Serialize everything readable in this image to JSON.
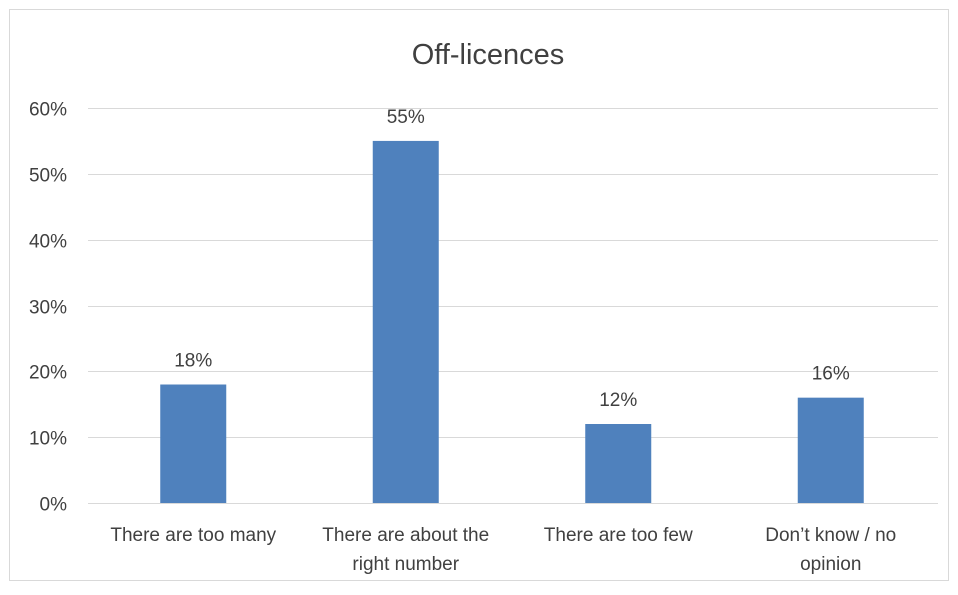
{
  "chart_data": {
    "type": "bar",
    "title": "Off-licences",
    "categories": [
      [
        "There are too many"
      ],
      [
        "There are about the",
        "right number"
      ],
      [
        "There are too few"
      ],
      [
        "Don’t know / no",
        "opinion"
      ]
    ],
    "values": [
      18,
      55,
      12,
      16
    ],
    "value_labels": [
      "18%",
      "55%",
      "12%",
      "16%"
    ],
    "ylim": [
      0,
      60
    ],
    "yticks": [
      0,
      10,
      20,
      30,
      40,
      50,
      60
    ],
    "ytick_labels": [
      "0%",
      "10%",
      "20%",
      "30%",
      "40%",
      "50%",
      "60%"
    ],
    "xlabel": "",
    "ylabel": "",
    "grid": true,
    "legend": "none",
    "colors": {
      "bar": "#4f81bd",
      "grid": "#d9d9d9",
      "text": "#404040",
      "title": "#404040",
      "border": "#d9d9d9"
    }
  }
}
